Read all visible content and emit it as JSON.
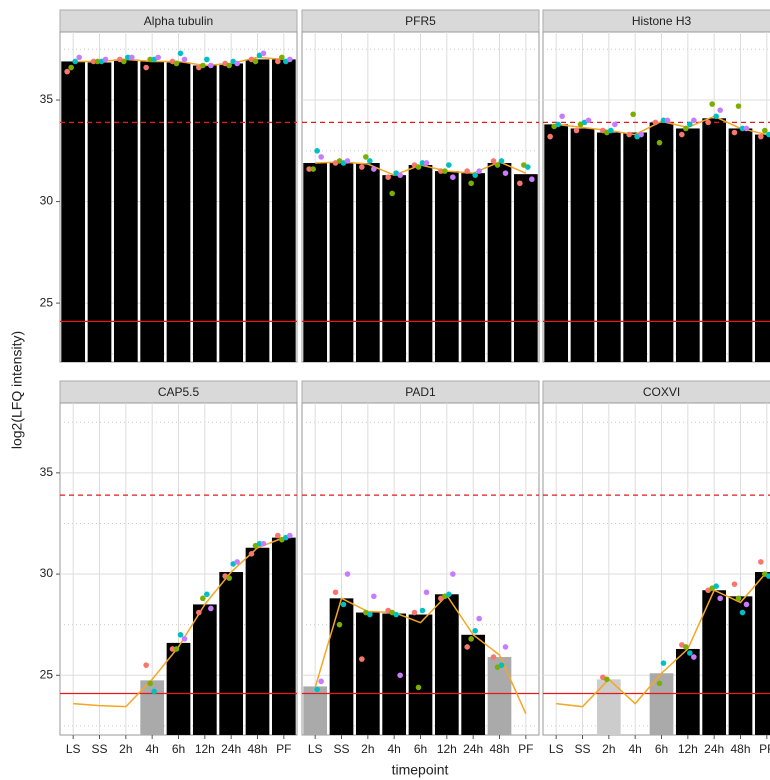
{
  "chart_data": [
    {
      "type": "bar",
      "title": "Alpha tubulin",
      "ylabel": "log2(LFQ intensity)",
      "values": [
        36.9,
        36.85,
        37.0,
        36.9,
        36.85,
        36.7,
        36.8,
        37.0,
        37.0
      ],
      "bar_colors": [
        "#000000",
        "#000000",
        "#000000",
        "#000000",
        "#000000",
        "#000000",
        "#000000",
        "#000000",
        "#000000"
      ],
      "line_values": [
        36.9,
        36.9,
        37.0,
        36.9,
        36.9,
        36.7,
        36.8,
        37.1,
        37.0
      ],
      "line_color": "#f5a623",
      "series": [
        {
          "color": "#F8766D",
          "values": [
            36.4,
            36.9,
            37.0,
            36.6,
            36.9,
            36.6,
            36.8,
            37.0,
            36.9
          ]
        },
        {
          "color": "#7CAE00",
          "values": [
            36.6,
            36.9,
            36.9,
            37.0,
            36.8,
            36.7,
            36.7,
            36.9,
            37.1
          ]
        },
        {
          "color": "#00BFC4",
          "values": [
            36.9,
            36.9,
            37.1,
            37.0,
            37.3,
            37.0,
            36.9,
            37.2,
            36.9
          ]
        },
        {
          "color": "#C77CFF",
          "values": [
            37.1,
            37.0,
            37.1,
            37.1,
            37.0,
            36.7,
            36.8,
            37.3,
            37.0
          ]
        }
      ],
      "hlines": [
        {
          "value": 33.9,
          "linetype": "dashed",
          "color": "#e41a1c"
        },
        {
          "value": 24.1,
          "linetype": "solid",
          "color": "#e41a1c"
        }
      ],
      "ylim": [
        22.1,
        38.35
      ],
      "yticks": [
        25,
        30,
        35
      ],
      "yminor": [
        22.5,
        27.5,
        32.5,
        37.5
      ],
      "grid": true
    },
    {
      "type": "bar",
      "title": "PFR5",
      "values": [
        31.9,
        31.9,
        31.9,
        31.3,
        31.8,
        31.5,
        31.4,
        31.9,
        31.35
      ],
      "bar_colors": [
        "#000000",
        "#000000",
        "#000000",
        "#000000",
        "#000000",
        "#000000",
        "#000000",
        "#000000",
        "#000000"
      ],
      "line_values": [
        31.9,
        31.95,
        31.85,
        31.3,
        31.8,
        31.5,
        31.4,
        31.95,
        31.4
      ],
      "line_color": "#f5a623",
      "series": [
        {
          "color": "#F8766D",
          "values": [
            31.6,
            31.9,
            31.7,
            31.2,
            31.8,
            31.5,
            31.5,
            32.0,
            30.9
          ]
        },
        {
          "color": "#7CAE00",
          "values": [
            31.6,
            32.0,
            32.2,
            30.4,
            31.7,
            31.5,
            30.9,
            31.8,
            31.8
          ]
        },
        {
          "color": "#00BFC4",
          "values": [
            32.5,
            31.9,
            32.0,
            31.4,
            31.9,
            31.8,
            31.3,
            32.0,
            31.7
          ]
        },
        {
          "color": "#C77CFF",
          "values": [
            32.2,
            32.0,
            31.6,
            31.3,
            31.9,
            31.2,
            31.5,
            31.4,
            31.1
          ]
        }
      ],
      "hlines": [
        {
          "value": 33.9,
          "linetype": "dashed",
          "color": "#e41a1c"
        },
        {
          "value": 24.1,
          "linetype": "solid",
          "color": "#e41a1c"
        }
      ],
      "ylim": [
        22.1,
        38.35
      ],
      "yticks": [
        25,
        30,
        35
      ],
      "yminor": [
        22.5,
        27.5,
        32.5,
        37.5
      ],
      "grid": true
    },
    {
      "type": "bar",
      "title": "Histone H3",
      "values": [
        33.8,
        33.6,
        33.4,
        33.4,
        33.9,
        33.6,
        34.1,
        33.6,
        33.3
      ],
      "bar_colors": [
        "#000000",
        "#000000",
        "#000000",
        "#000000",
        "#000000",
        "#000000",
        "#000000",
        "#000000",
        "#000000"
      ],
      "line_values": [
        33.8,
        33.65,
        33.5,
        33.3,
        33.95,
        33.65,
        34.2,
        33.6,
        33.3
      ],
      "line_color": "#f5a623",
      "series": [
        {
          "color": "#F8766D",
          "values": [
            33.2,
            33.5,
            33.5,
            33.3,
            33.9,
            33.3,
            33.9,
            33.4,
            33.2
          ]
        },
        {
          "color": "#7CAE00",
          "values": [
            33.7,
            33.8,
            33.4,
            34.3,
            32.9,
            33.6,
            34.8,
            34.7,
            33.5
          ]
        },
        {
          "color": "#00BFC4",
          "values": [
            33.8,
            33.9,
            33.5,
            33.2,
            34.0,
            33.8,
            34.2,
            33.6,
            33.3
          ]
        },
        {
          "color": "#C77CFF",
          "values": [
            34.2,
            34.0,
            33.8,
            33.3,
            34.0,
            34.0,
            34.5,
            33.6,
            33.4
          ]
        }
      ],
      "hlines": [
        {
          "value": 33.9,
          "linetype": "dashed",
          "color": "#e41a1c"
        },
        {
          "value": 24.1,
          "linetype": "solid",
          "color": "#e41a1c"
        }
      ],
      "ylim": [
        22.1,
        38.35
      ],
      "yticks": [
        25,
        30,
        35
      ],
      "yminor": [
        22.5,
        27.5,
        32.5,
        37.5
      ],
      "grid": true
    },
    {
      "type": "bar",
      "title": "CAP5.5",
      "categories": [
        "LS",
        "SS",
        "2h",
        "4h",
        "6h",
        "12h",
        "24h",
        "48h",
        "PF"
      ],
      "values": [
        null,
        null,
        null,
        24.75,
        26.6,
        28.5,
        30.1,
        31.3,
        31.8
      ],
      "bar_colors": [
        null,
        null,
        null,
        "#aaaaaa",
        "#000000",
        "#000000",
        "#000000",
        "#000000",
        "#000000"
      ],
      "line_values": [
        23.6,
        23.5,
        23.45,
        24.8,
        26.4,
        28.5,
        30.1,
        31.3,
        31.8
      ],
      "line_color": "#f5a623",
      "series": [
        {
          "color": "#F8766D",
          "values": [
            null,
            null,
            null,
            25.5,
            26.3,
            28.1,
            29.9,
            31.0,
            31.9
          ]
        },
        {
          "color": "#7CAE00",
          "values": [
            null,
            null,
            null,
            24.6,
            26.3,
            28.8,
            29.8,
            31.4,
            31.7
          ]
        },
        {
          "color": "#00BFC4",
          "values": [
            null,
            null,
            null,
            24.2,
            27.0,
            29.0,
            30.5,
            31.5,
            31.8
          ]
        },
        {
          "color": "#C77CFF",
          "values": [
            null,
            null,
            null,
            null,
            26.8,
            28.3,
            30.6,
            31.5,
            31.9
          ]
        }
      ],
      "hlines": [
        {
          "value": 33.9,
          "linetype": "dashed",
          "color": "#e41a1c"
        },
        {
          "value": 24.1,
          "linetype": "solid",
          "color": "#e41a1c"
        }
      ],
      "ylim": [
        22.05,
        38.45
      ],
      "yticks": [
        25,
        30,
        35
      ],
      "yminor": [
        22.5,
        27.5,
        32.5,
        37.5
      ],
      "grid": true
    },
    {
      "type": "bar",
      "title": "PAD1",
      "xlabel": "timepoint",
      "categories": [
        "LS",
        "SS",
        "2h",
        "4h",
        "6h",
        "12h",
        "24h",
        "48h",
        "PF"
      ],
      "values": [
        24.45,
        28.8,
        28.1,
        28.05,
        28.0,
        29.0,
        27.0,
        25.9,
        null
      ],
      "bar_colors": [
        "#aaaaaa",
        "#000000",
        "#000000",
        "#000000",
        "#000000",
        "#000000",
        "#000000",
        "#aaaaaa",
        null
      ],
      "line_values": [
        24.4,
        28.8,
        28.15,
        28.1,
        27.6,
        28.95,
        27.0,
        26.0,
        23.1
      ],
      "line_color": "#f5a623",
      "series": [
        {
          "color": "#F8766D",
          "values": [
            null,
            29.1,
            25.8,
            28.2,
            28.1,
            28.8,
            26.4,
            25.9,
            null
          ]
        },
        {
          "color": "#7CAE00",
          "values": [
            null,
            27.5,
            28.1,
            28.1,
            24.4,
            28.9,
            26.8,
            25.4,
            null
          ]
        },
        {
          "color": "#00BFC4",
          "values": [
            24.3,
            28.5,
            28.0,
            28.0,
            28.2,
            29.0,
            27.2,
            25.5,
            null
          ]
        },
        {
          "color": "#C77CFF",
          "values": [
            24.7,
            30.0,
            28.9,
            25.0,
            29.1,
            30.0,
            27.8,
            26.4,
            null
          ]
        }
      ],
      "hlines": [
        {
          "value": 33.9,
          "linetype": "dashed",
          "color": "#e41a1c"
        },
        {
          "value": 24.1,
          "linetype": "solid",
          "color": "#e41a1c"
        }
      ],
      "ylim": [
        22.05,
        38.45
      ],
      "yticks": [
        25,
        30,
        35
      ],
      "yminor": [
        22.5,
        27.5,
        32.5,
        37.5
      ],
      "grid": true
    },
    {
      "type": "bar",
      "title": "COXVI",
      "categories": [
        "LS",
        "SS",
        "2h",
        "4h",
        "6h",
        "12h",
        "24h",
        "48h",
        "PF"
      ],
      "values": [
        null,
        null,
        24.8,
        null,
        25.1,
        26.3,
        29.2,
        28.9,
        30.1
      ],
      "bar_colors": [
        null,
        null,
        "#cccccc",
        null,
        "#aaaaaa",
        "#000000",
        "#000000",
        "#000000",
        "#000000"
      ],
      "line_values": [
        23.6,
        23.45,
        24.8,
        23.6,
        25.1,
        26.3,
        29.2,
        28.6,
        30.1
      ],
      "line_color": "#f5a623",
      "series": [
        {
          "color": "#F8766D",
          "values": [
            null,
            null,
            24.9,
            null,
            null,
            26.5,
            29.2,
            29.5,
            30.6
          ]
        },
        {
          "color": "#7CAE00",
          "values": [
            null,
            null,
            24.8,
            null,
            24.6,
            26.4,
            29.3,
            28.8,
            30.0
          ]
        },
        {
          "color": "#00BFC4",
          "values": [
            null,
            null,
            null,
            null,
            25.6,
            26.1,
            29.4,
            28.1,
            29.9
          ]
        },
        {
          "color": "#C77CFF",
          "values": [
            null,
            null,
            null,
            null,
            null,
            25.9,
            28.8,
            28.5,
            30.2
          ]
        }
      ],
      "hlines": [
        {
          "value": 33.9,
          "linetype": "dashed",
          "color": "#e41a1c"
        },
        {
          "value": 24.1,
          "linetype": "solid",
          "color": "#e41a1c"
        }
      ],
      "ylim": [
        22.05,
        38.45
      ],
      "yticks": [
        25,
        30,
        35
      ],
      "yminor": [
        22.5,
        27.5,
        32.5,
        37.5
      ],
      "grid": true
    }
  ]
}
